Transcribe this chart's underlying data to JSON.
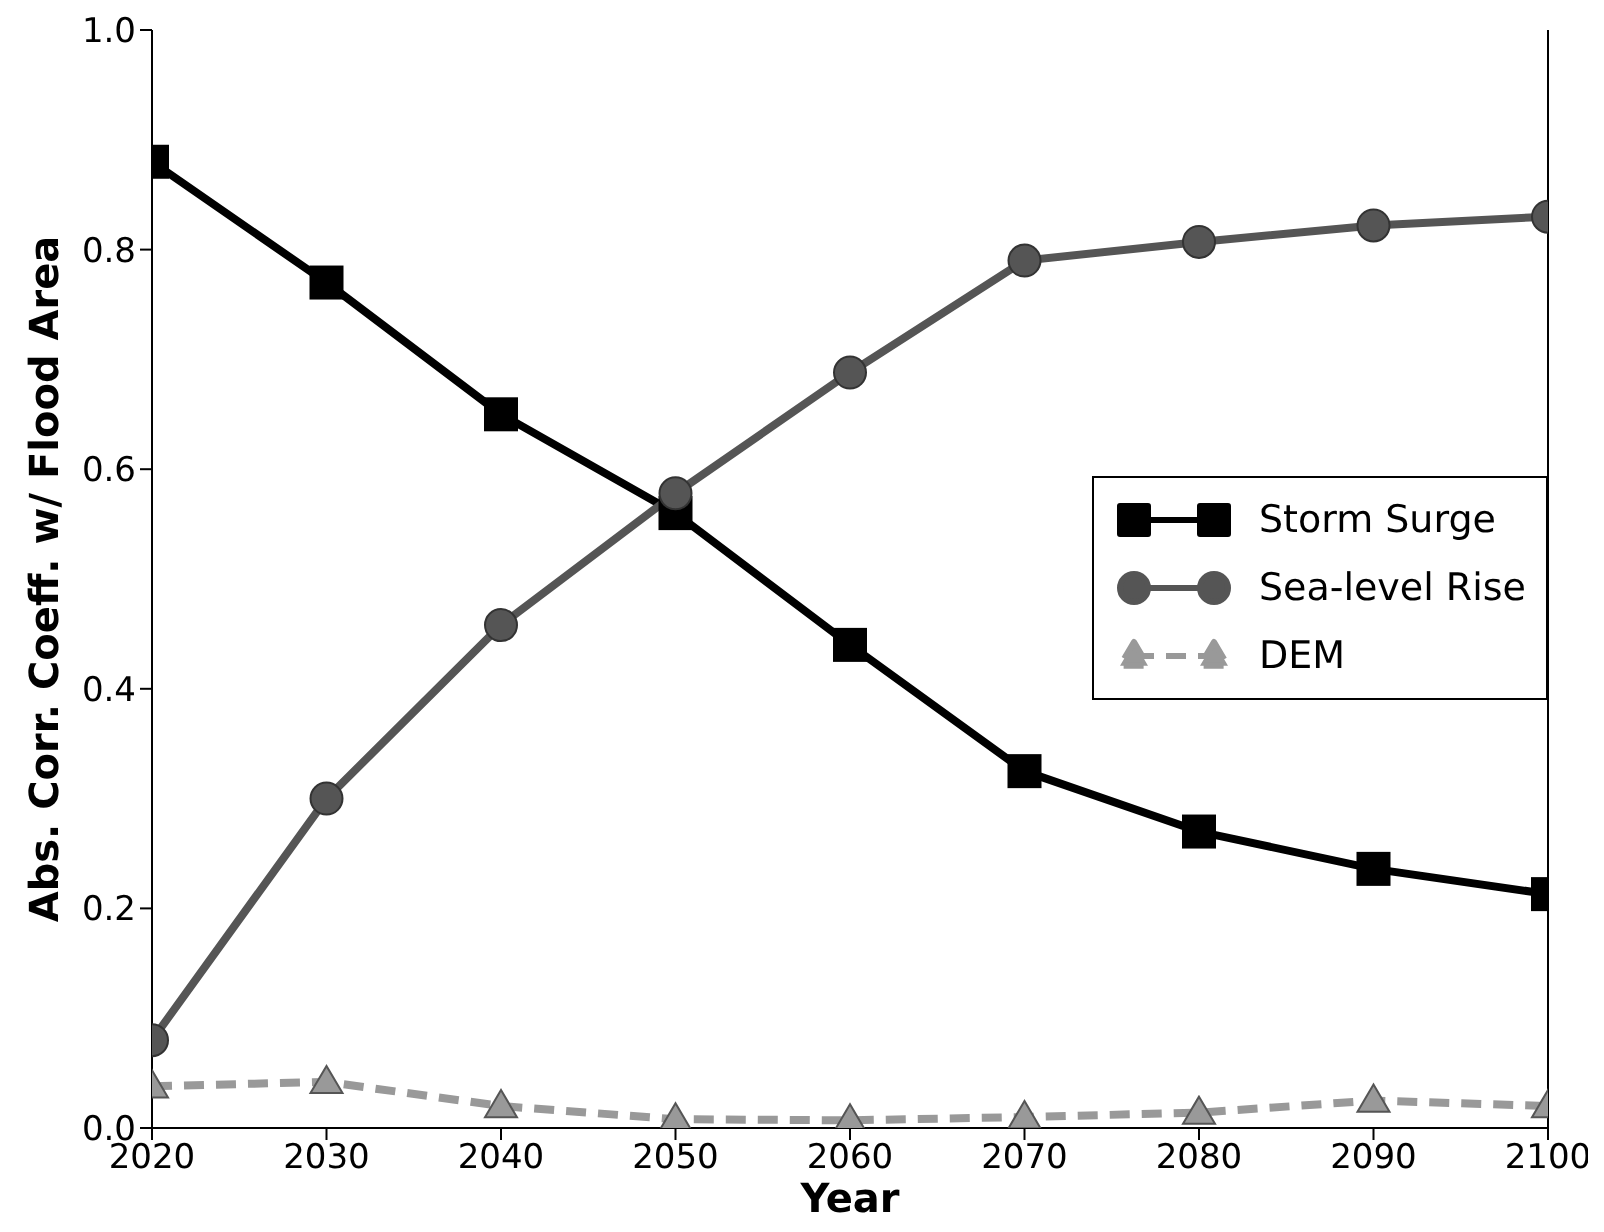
{
  "chart_data": {
    "type": "line",
    "xlabel": "Year",
    "ylabel": "Abs. Corr. Coeff. w/ Flood Area",
    "x": [
      2020,
      2030,
      2040,
      2050,
      2060,
      2070,
      2080,
      2090,
      2100
    ],
    "series": [
      {
        "name": "Storm Surge",
        "color": "#000000",
        "marker": "square",
        "line_style": "solid",
        "values": [
          0.88,
          0.77,
          0.65,
          0.56,
          0.44,
          0.325,
          0.27,
          0.236,
          0.213
        ]
      },
      {
        "name": "Sea-level Rise",
        "color": "#555555",
        "marker": "circle",
        "line_style": "solid",
        "values": [
          0.08,
          0.3,
          0.458,
          0.578,
          0.688,
          0.79,
          0.807,
          0.822,
          0.83
        ]
      },
      {
        "name": "DEM",
        "color": "#999999",
        "marker": "triangle",
        "line_style": "dashed",
        "values": [
          0.038,
          0.042,
          0.02,
          0.008,
          0.007,
          0.01,
          0.014,
          0.025,
          0.02
        ]
      }
    ],
    "xlim": [
      2020,
      2100
    ],
    "xticks": [
      2020,
      2030,
      2040,
      2050,
      2060,
      2070,
      2080,
      2090,
      2100
    ],
    "ylim": [
      0,
      1
    ],
    "yticks": [
      {
        "value": 0,
        "label": "0.0"
      },
      {
        "value": 0.2,
        "label": "0.2"
      },
      {
        "value": 0.4,
        "label": "0.4"
      },
      {
        "value": 0.6,
        "label": "0.6"
      },
      {
        "value": 0.8,
        "label": "0.8"
      },
      {
        "value": 1,
        "label": "1.0"
      }
    ],
    "grid": false,
    "legend": "right"
  }
}
